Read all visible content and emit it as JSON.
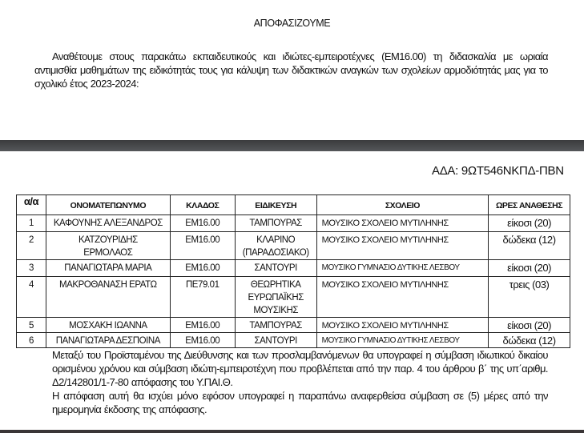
{
  "title": "ΑΠΟΦΑΣΙΖΟΥΜΕ",
  "intro": "Αναθέτουμε στους παρακάτω εκπαιδευτικούς και ιδιώτες-εμπειροτέχνες (ΕΜ16.00) τη διδασκαλία με ωριαία αντιμισθία μαθημάτων της ειδικότητάς τους για κάλυψη των διδακτικών αναγκών των σχολείων αρμοδιότητάς μας για το σχολικό έτος 2023-2024:",
  "ada": "ΑΔΑ: 9ΩΤ546ΝΚΠΔ-ΠΒΝ",
  "table": {
    "headers": [
      "α/α",
      "ΟΝΟΜΑΤΕΠΩΝΥΜΟ",
      "ΚΛΑΔΟΣ",
      "ΕΙΔΙΚΕΥΣΗ",
      "ΣΧΟΛΕΙΟ",
      "ΩΡΕΣ ΑΝΑΘΕΣΗΣ"
    ],
    "rows": [
      [
        "1",
        "ΚΑΦΟΥΝΗΣ ΑΛΕΞΑΝΔΡΟΣ",
        "ΕΜ16.00",
        "ΤΑΜΠΟΥΡΑΣ",
        "ΜΟΥΣΙΚΟ ΣΧΟΛΕΙΟ ΜΥΤΙΛΗΝΗΣ",
        "είκοσι (20)"
      ],
      [
        "2",
        "ΚΑΤΖΟΥΡΙΔΗΣ ΕΡΜΟΛΑΟΣ",
        "ΕΜ16.00",
        "ΚΛΑΡΙΝΟ (ΠΑΡΑΔΟΣΙΑΚΟ)",
        "ΜΟΥΣΙΚΟ ΣΧΟΛΕΙΟ ΜΥΤΙΛΗΝΗΣ",
        "δώδεκα (12)"
      ],
      [
        "3",
        "ΠΑΝΑΓΙΩΤΑΡΑ ΜΑΡΙΑ",
        "ΕΜ16.00",
        "ΣΑΝΤΟΥΡΙ",
        "ΜΟΥΣΙΚΟ ΓΥΜΝΑΣΙΟ ΔΥΤΙΚΗΣ ΛΕΣΒΟΥ",
        "είκοσι (20)"
      ],
      [
        "4",
        "ΜΑΚΡΟΘΑΝΑΣΗ ΕΡΑΤΩ",
        "ΠΕ79.01",
        "ΘΕΩΡΗΤΙΚΑ ΕΥΡΩΠΑΪΚΗΣ ΜΟΥΣΙΚΗΣ",
        "ΜΟΥΣΙΚΟ ΣΧΟΛΕΙΟ ΜΥΤΙΛΗΝΗΣ",
        "τρεις (03)"
      ],
      [
        "5",
        "ΜΟΣΧΑΚΗ ΙΩΑΝΝΑ",
        "ΕΜ16.00",
        "ΤΑΜΠΟΥΡΑΣ",
        "ΜΟΥΣΙΚΟ ΣΧΟΛΕΙΟ ΜΥΤΙΛΗΝΗΣ",
        "είκοσι (20)"
      ],
      [
        "6",
        "ΠΑΝΑΓΙΩΤΑΡΑ ΔΕΣΠΟΙΝΑ",
        "ΕΜ16.00",
        "ΣΑΝΤΟΥΡΙ",
        "ΜΟΥΣΙΚΟ ΓΥΜΝΑΣΙΟ ΔΥΤΙΚΗΣ ΛΕΣΒΟΥ",
        "δώδεκα (12)"
      ]
    ]
  },
  "para2": "Μεταξύ του Προϊσταμένου της Διεύθυνσης και των προσλαμβανόμενων θα υπογραφεί η σύμβαση ιδιωτικού δικαίου ορισμένου χρόνου και σύμβαση ιδιώτη-εμπειροτέχνη που προβλέπεται από την παρ. 4 του άρθρου β΄ της υπ΄αριθμ. Δ2/142801/1-7-80 απόφασης του Υ.ΠΑΙ.Θ.",
  "para3": "Η απόφαση αυτή θα ισχύει μόνο εφόσον υπογραφεί η παραπάνω αναφερθείσα σύμβαση σε (5) μέρες από την ημερομηνία έκδοσης της απόφασης."
}
